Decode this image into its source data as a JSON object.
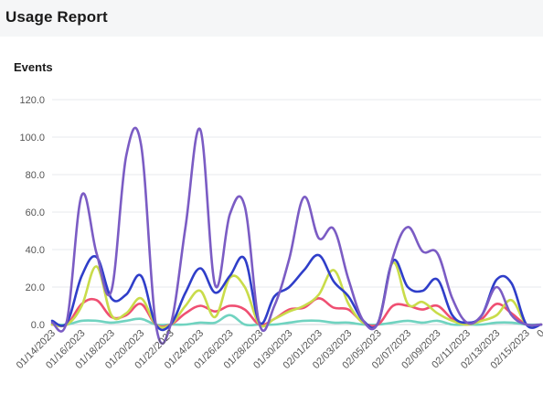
{
  "header": {
    "title": "Usage Report"
  },
  "chart_panel": {
    "title": "Events"
  },
  "chart_data": {
    "type": "line",
    "title": "Events",
    "xlabel": "",
    "ylabel": "",
    "ylim": [
      0,
      120
    ],
    "yticks": [
      "0.0",
      "20.0",
      "40.0",
      "60.0",
      "80.0",
      "100.0",
      "120.0"
    ],
    "grid": true,
    "legend": "none",
    "x": [
      "01/14/2023",
      "01/15/2023",
      "01/16/2023",
      "01/17/2023",
      "01/18/2023",
      "01/19/2023",
      "01/20/2023",
      "01/21/2023",
      "01/22/2023",
      "01/23/2023",
      "01/24/2023",
      "01/25/2023",
      "01/26/2023",
      "01/27/2023",
      "01/28/2023",
      "01/29/2023",
      "01/30/2023",
      "01/31/2023",
      "02/01/2023",
      "02/02/2023",
      "02/03/2023",
      "02/04/2023",
      "02/05/2023",
      "02/06/2023",
      "02/07/2023",
      "02/08/2023",
      "02/09/2023",
      "02/10/2023",
      "02/11/2023",
      "02/12/2023",
      "02/13/2023",
      "02/14/2023",
      "02/15/2023",
      "02/16/2023"
    ],
    "xtick_labels": [
      "01/14/2023",
      "01/16/2023",
      "01/18/2023",
      "01/20/2023",
      "01/22/2023",
      "01/24/2023",
      "01/26/2023",
      "01/28/2023",
      "01/30/2023",
      "02/01/2023",
      "02/03/2023",
      "02/05/2023",
      "02/07/2023",
      "02/09/2023",
      "02/11/2023",
      "02/13/2023",
      "02/15/2023",
      "0"
    ],
    "series": [
      {
        "color": "#7b5cc4",
        "values": [
          1,
          2,
          69,
          38,
          18,
          90,
          96,
          0,
          0,
          52,
          104,
          21,
          59,
          63,
          0,
          10,
          35,
          68,
          46,
          51,
          24,
          2,
          1,
          36,
          52,
          39,
          38,
          14,
          1,
          5,
          20,
          5,
          0,
          0
        ]
      },
      {
        "color": "#2f3ec9",
        "values": [
          2,
          1,
          26,
          36,
          14,
          16,
          26,
          0,
          0,
          17,
          30,
          17,
          26,
          35,
          1,
          15,
          20,
          29,
          37,
          23,
          15,
          2,
          1,
          34,
          20,
          18,
          24,
          5,
          1,
          5,
          24,
          22,
          0,
          0
        ]
      },
      {
        "color": "#c9dc4a",
        "values": [
          0,
          0,
          10,
          31,
          5,
          6,
          14,
          0,
          0,
          10,
          18,
          4,
          25,
          20,
          0,
          3,
          7,
          10,
          16,
          29,
          11,
          1,
          1,
          33,
          11,
          12,
          6,
          2,
          0,
          2,
          5,
          13,
          0,
          0
        ]
      },
      {
        "color": "#ef4f72",
        "values": [
          0,
          0,
          11,
          13,
          4,
          5,
          11,
          0,
          0,
          6,
          10,
          7,
          10,
          8,
          0,
          3,
          8,
          9,
          14,
          9,
          8,
          1,
          0,
          10,
          10,
          8,
          10,
          3,
          0,
          3,
          11,
          6,
          0,
          0
        ]
      },
      {
        "color": "#70d3c0",
        "values": [
          0,
          0,
          2,
          2,
          1,
          2,
          3,
          0,
          0,
          0,
          1,
          1,
          5,
          0,
          0,
          0,
          1,
          2,
          2,
          1,
          1,
          0,
          0,
          1,
          2,
          1,
          2,
          0,
          0,
          0,
          1,
          1,
          0,
          0
        ]
      }
    ]
  }
}
